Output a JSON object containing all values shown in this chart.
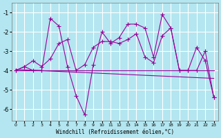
{
  "x": [
    0,
    1,
    2,
    3,
    4,
    5,
    6,
    7,
    8,
    9,
    10,
    11,
    12,
    13,
    14,
    15,
    16,
    17,
    18,
    19,
    20,
    21,
    22,
    23
  ],
  "y_zigzag": [
    -4.0,
    -3.8,
    -4.0,
    -4.0,
    -1.3,
    -1.7,
    -3.8,
    -5.3,
    -6.3,
    -3.7,
    -2.0,
    -2.6,
    -2.3,
    -1.6,
    -1.6,
    -1.8,
    -3.3,
    -1.1,
    -1.8,
    -4.0,
    -4.0,
    -2.8,
    -3.5,
    -5.4
  ],
  "y_smooth": [
    -4.0,
    -3.8,
    -3.5,
    -3.8,
    -3.4,
    -2.6,
    -2.4,
    -4.0,
    -3.7,
    -2.8,
    -2.5,
    -2.5,
    -2.6,
    -2.4,
    -2.1,
    -3.3,
    -3.6,
    -2.2,
    -1.8,
    -4.0,
    -4.0,
    -4.0,
    -3.0,
    -5.4
  ],
  "y_flat": [
    -4.0,
    -4.0,
    -4.0,
    -4.0,
    -4.0,
    -4.0,
    -4.0,
    -4.0,
    -4.0,
    -4.0,
    -4.0,
    -4.0,
    -4.0,
    -4.0,
    -4.0,
    -4.0,
    -4.0,
    -4.0,
    -4.0,
    -4.0,
    -4.0,
    -4.0,
    -4.0,
    -4.0
  ],
  "y_regression": [
    -3.95,
    -3.97,
    -3.99,
    -4.01,
    -4.03,
    -4.05,
    -4.07,
    -4.09,
    -4.11,
    -4.13,
    -4.15,
    -4.17,
    -4.19,
    -4.21,
    -4.23,
    -4.25,
    -4.27,
    -4.29,
    -4.31,
    -4.33,
    -4.35,
    -4.37,
    -4.39,
    -4.41
  ],
  "color": "#990099",
  "bg_color": "#b3e6f0",
  "grid_color": "#ffffff",
  "xlabel": "Windchill (Refroidissement éolien,°C)",
  "ylim": [
    -6.6,
    -0.5
  ],
  "xlim": [
    -0.5,
    23.5
  ],
  "yticks": [
    -6,
    -5,
    -4,
    -3,
    -2,
    -1
  ],
  "xticks": [
    0,
    1,
    2,
    3,
    4,
    5,
    6,
    7,
    8,
    9,
    10,
    11,
    12,
    13,
    14,
    15,
    16,
    17,
    18,
    19,
    20,
    21,
    22,
    23
  ],
  "marker": "+",
  "markersize": 4,
  "linewidth": 0.8
}
